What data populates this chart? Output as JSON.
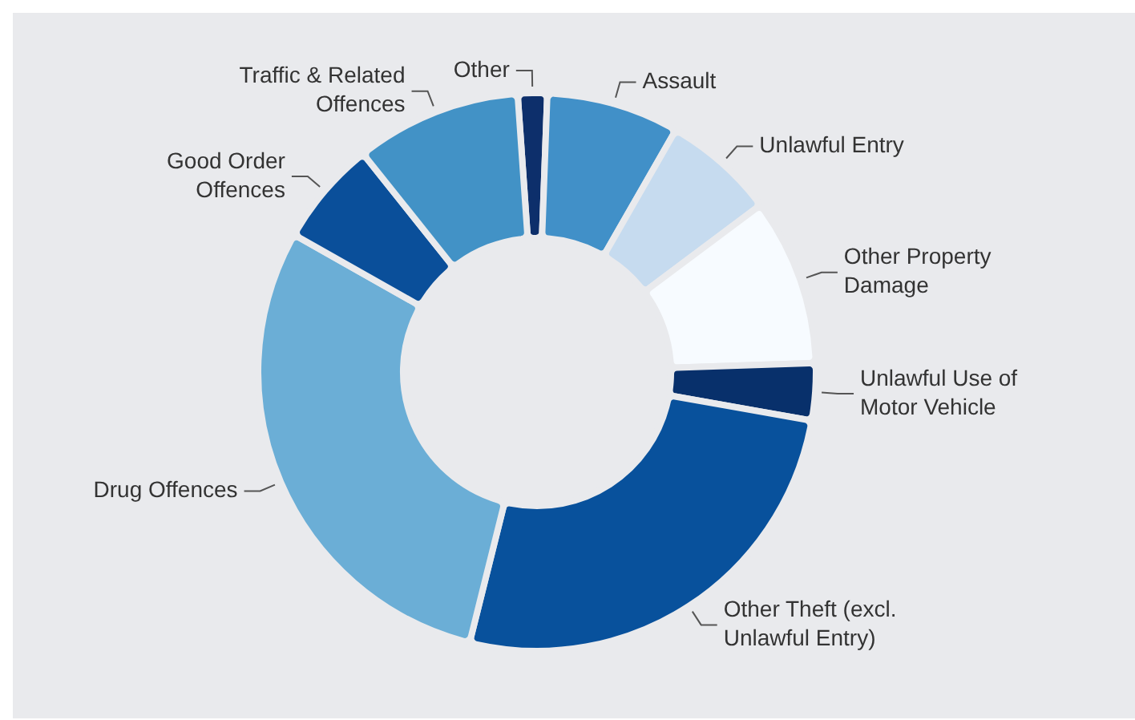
{
  "chart_data": {
    "type": "donut",
    "categories": [
      "Other",
      "Assault",
      "Unlawful Entry",
      "Other Property Damage",
      "Unlawful Use of Motor Vehicle",
      "Other Theft (excl. Unlawful Entry)",
      "Drug Offences",
      "Good Order Offences",
      "Traffic & Related Offences"
    ],
    "values": [
      1.7,
      7.7,
      6.5,
      9.7,
      3.3,
      26.1,
      29.3,
      6.1,
      9.6
    ],
    "colors": [
      "#0d2f6b",
      "#4190c8",
      "#c6dbef",
      "#f7fbff",
      "#08306b",
      "#08519c",
      "#6baed6",
      "#0a4f9a",
      "#4292c6"
    ],
    "legend": false
  }
}
